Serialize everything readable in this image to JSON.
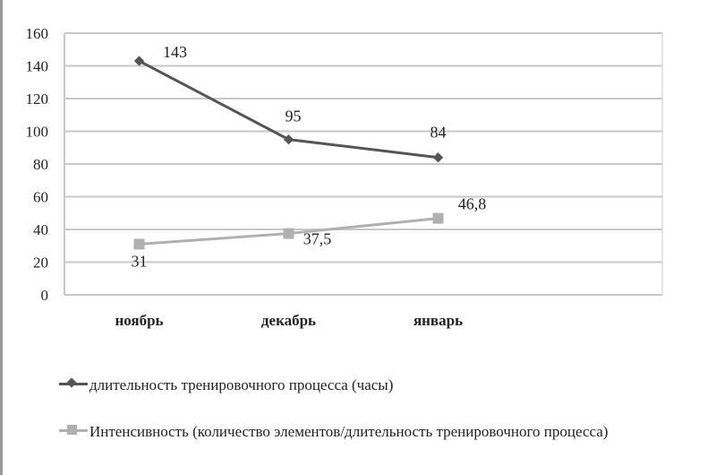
{
  "chart_data": {
    "type": "line",
    "categories": [
      "ноябрь",
      "декабрь",
      "январь"
    ],
    "ylim": [
      0,
      160
    ],
    "yticks": [
      0,
      20,
      40,
      60,
      80,
      100,
      120,
      140,
      160
    ],
    "grid": true,
    "legend_position": "bottom",
    "series": [
      {
        "name": "длительность тренировочного процесса (часы)",
        "values": [
          143,
          95,
          84
        ],
        "labels": [
          "143",
          "95",
          "84"
        ],
        "color": "#555555",
        "marker": "diamond"
      },
      {
        "name": "Интенсивность (количество элементов/длительность тренировочного процесса)",
        "values": [
          31,
          37.5,
          46.8
        ],
        "labels": [
          "31",
          "37,5",
          "46,8"
        ],
        "color": "#b0b0b0",
        "marker": "square"
      }
    ]
  }
}
